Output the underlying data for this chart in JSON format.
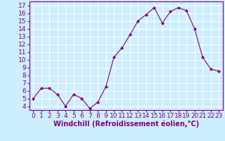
{
  "x": [
    0,
    1,
    2,
    3,
    4,
    5,
    6,
    7,
    8,
    9,
    10,
    11,
    12,
    13,
    14,
    15,
    16,
    17,
    18,
    19,
    20,
    21,
    22,
    23
  ],
  "y": [
    5,
    6.3,
    6.3,
    5.5,
    4.0,
    5.5,
    5.0,
    3.7,
    4.5,
    6.5,
    10.3,
    11.5,
    13.2,
    15.0,
    15.8,
    16.7,
    14.7,
    16.2,
    16.7,
    16.3,
    14.0,
    10.3,
    8.8,
    8.5
  ],
  "line_color": "#800080",
  "marker": "D",
  "marker_size": 2,
  "bg_color": "#cceeff",
  "grid_color": "#ffffff",
  "xlabel": "Windchill (Refroidissement éolien,°C)",
  "xlabel_color": "#800080",
  "tick_color": "#800080",
  "ylim": [
    3.5,
    17.5
  ],
  "xlim": [
    -0.5,
    23.5
  ],
  "yticks": [
    4,
    5,
    6,
    7,
    8,
    9,
    10,
    11,
    12,
    13,
    14,
    15,
    16,
    17
  ],
  "xticks": [
    0,
    1,
    2,
    3,
    4,
    5,
    6,
    7,
    8,
    9,
    10,
    11,
    12,
    13,
    14,
    15,
    16,
    17,
    18,
    19,
    20,
    21,
    22,
    23
  ],
  "font_size": 6.5
}
